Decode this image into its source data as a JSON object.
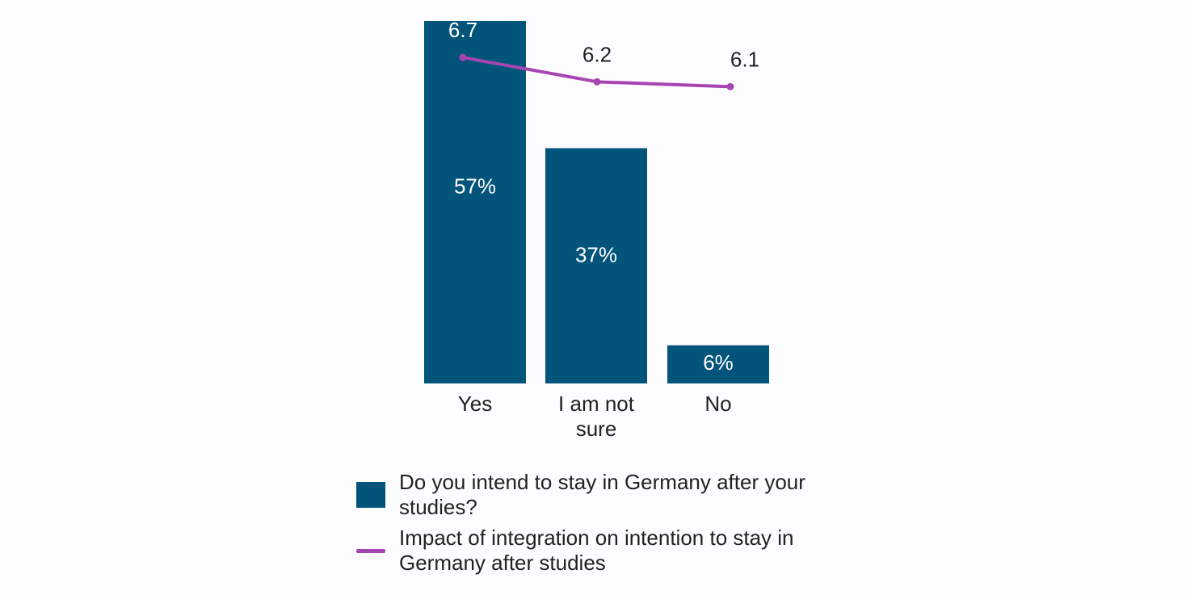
{
  "chart_data": {
    "type": "bar",
    "categories": [
      "Yes",
      "I am not sure",
      "No"
    ],
    "category_lines": [
      [
        "Yes"
      ],
      [
        "I am not",
        "sure"
      ],
      [
        "No"
      ]
    ],
    "series": [
      {
        "name": "Do you intend to stay in Germany after your studies?",
        "kind": "bar",
        "values": [
          57,
          37,
          6
        ],
        "labels": [
          "57%",
          "37%",
          "6%"
        ],
        "color": "#03547a"
      },
      {
        "name": "Impact of integration on intention to stay in Germany after studies",
        "kind": "line",
        "values": [
          6.7,
          6.2,
          6.1
        ],
        "labels": [
          "6.7",
          "6.2",
          "6.1"
        ],
        "color": "#a645b2"
      }
    ],
    "title": "",
    "xlabel": "",
    "ylabel": "",
    "ylim": [
      0,
      57
    ],
    "line_ylim": [
      0,
      7.45
    ],
    "grid": false,
    "legend_position": "bottom"
  },
  "legend": {
    "bar_label": "Do you intend to stay in Germany after your studies?",
    "line_label": "Impact of integration on intention to stay in Germany after studies"
  }
}
